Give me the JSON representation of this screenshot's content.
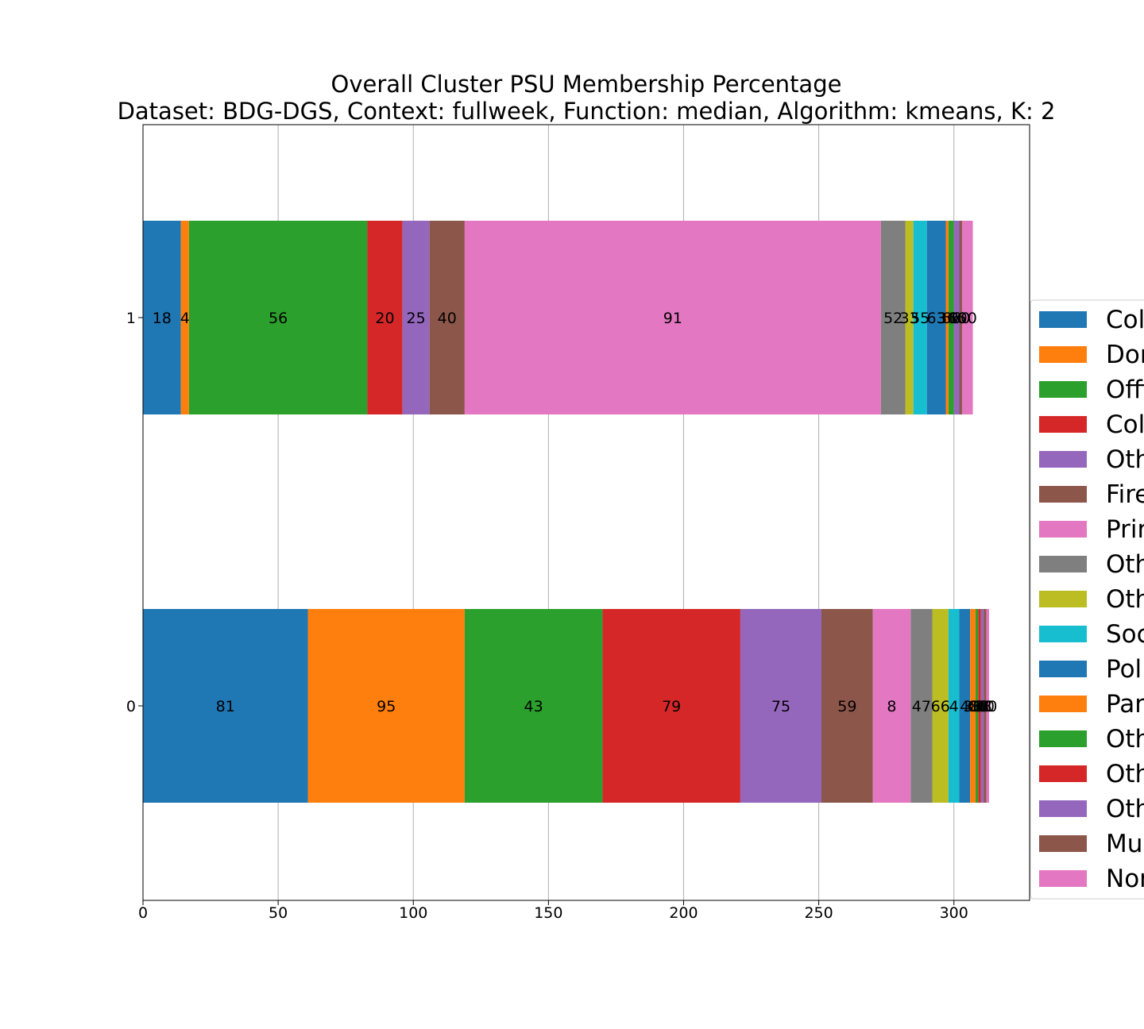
{
  "chart_data": {
    "type": "bar",
    "orientation": "horizontal",
    "stacked": true,
    "title": "Overall Cluster  PSU Membership Percentage",
    "subtitle": "Dataset: BDG-DGS, Context: fullweek, Function: median, Algorithm: kmeans, K: 2",
    "categories": [
      "0",
      "1"
    ],
    "xlim": [
      0,
      328
    ],
    "x_ticks": [
      0,
      50,
      100,
      150,
      200,
      250,
      300
    ],
    "grid": "vertical",
    "legend_position": "right",
    "series": [
      {
        "name": "Col",
        "color": "#1f77b4",
        "values": [
          61,
          14
        ],
        "labels": [
          "81",
          "18"
        ]
      },
      {
        "name": "Dor",
        "color": "#ff7f0e",
        "values": [
          58,
          3
        ],
        "labels": [
          "95",
          "4"
        ]
      },
      {
        "name": "Offi",
        "color": "#2ca02c",
        "values": [
          51,
          66
        ],
        "labels": [
          "43",
          "56"
        ]
      },
      {
        "name": "Col",
        "color": "#d62728",
        "values": [
          51,
          13
        ],
        "labels": [
          "79",
          "20"
        ]
      },
      {
        "name": "Oth",
        "color": "#9467bd",
        "values": [
          30,
          10
        ],
        "labels": [
          "75",
          "25"
        ]
      },
      {
        "name": "Fire",
        "color": "#8c564b",
        "values": [
          19,
          13
        ],
        "labels": [
          "59",
          "40"
        ]
      },
      {
        "name": "Prir",
        "color": "#e377c2",
        "values": [
          14,
          154
        ],
        "labels": [
          "8",
          "91"
        ]
      },
      {
        "name": "Oth",
        "color": "#7f7f7f",
        "values": [
          8,
          9
        ],
        "labels": [
          "47",
          "52"
        ]
      },
      {
        "name": "Oth",
        "color": "#bcbd22",
        "values": [
          6,
          3
        ],
        "labels": [
          "66",
          "33"
        ]
      },
      {
        "name": "Soc",
        "color": "#17becf",
        "values": [
          4,
          5
        ],
        "labels": [
          "4",
          "55"
        ]
      },
      {
        "name": "Poli",
        "color": "#1f77b4",
        "values": [
          4,
          7
        ],
        "labels": [
          "4",
          "63"
        ]
      },
      {
        "name": "Par",
        "color": "#ff7f0e",
        "values": [
          2,
          1
        ],
        "labels": [
          "36",
          "36"
        ]
      },
      {
        "name": "Oth",
        "color": "#2ca02c",
        "values": [
          1,
          2
        ],
        "labels": [
          "66",
          "66"
        ]
      },
      {
        "name": "Oth",
        "color": "#d62728",
        "values": [
          1,
          0
        ],
        "labels": [
          "88",
          "0"
        ]
      },
      {
        "name": "Oth",
        "color": "#9467bd",
        "values": [
          1,
          2
        ],
        "labels": [
          "88",
          "66"
        ]
      },
      {
        "name": "Mul",
        "color": "#8c564b",
        "values": [
          1,
          1
        ],
        "labels": [
          "80",
          "60"
        ]
      },
      {
        "name": "Nor",
        "color": "#e377c2",
        "values": [
          1,
          4
        ],
        "labels": [
          "80",
          "00"
        ]
      }
    ]
  }
}
